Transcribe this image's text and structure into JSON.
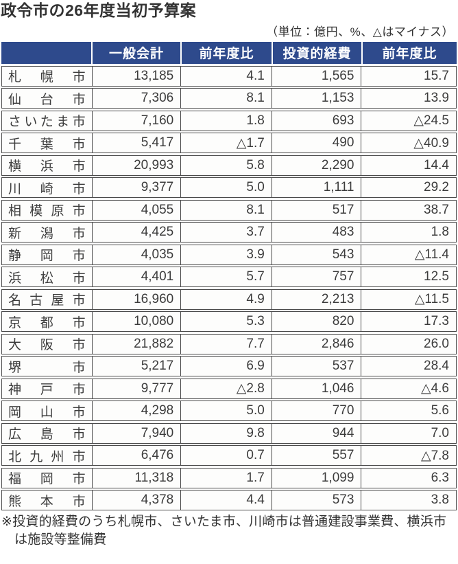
{
  "title": "政令市の26年度当初予算案",
  "units_note": "（単位：億円、%、△はマイナス）",
  "footnote": "※投資的経費のうち札幌市、さいたま市、川崎市は普通建設事業費、横浜市は施設等整備費",
  "colors": {
    "header_bg": "#2e4a8c",
    "header_text": "#ffffff",
    "border": "#4a4a4a",
    "text": "#3c3c3c"
  },
  "chart_data": {
    "type": "table",
    "title": "政令市の26年度当初予算案",
    "units": "億円、%、△はマイナス",
    "columns": [
      "",
      "一般会計",
      "前年度比",
      "投資的経費",
      "前年度比"
    ],
    "rows": [
      {
        "city": "札幌市",
        "values": [
          "13,185",
          "4.1",
          "1,565",
          "15.7"
        ]
      },
      {
        "city": "仙台市",
        "values": [
          "7,306",
          "8.1",
          "1,153",
          "13.9"
        ]
      },
      {
        "city": "さいたま市",
        "values": [
          "7,160",
          "1.8",
          "693",
          "△24.5"
        ]
      },
      {
        "city": "千葉市",
        "values": [
          "5,417",
          "△1.7",
          "490",
          "△40.9"
        ]
      },
      {
        "city": "横浜市",
        "values": [
          "20,993",
          "5.8",
          "2,290",
          "14.4"
        ]
      },
      {
        "city": "川崎市",
        "values": [
          "9,377",
          "5.0",
          "1,111",
          "29.2"
        ]
      },
      {
        "city": "相模原市",
        "values": [
          "4,055",
          "8.1",
          "517",
          "38.7"
        ]
      },
      {
        "city": "新潟市",
        "values": [
          "4,425",
          "3.7",
          "483",
          "1.8"
        ]
      },
      {
        "city": "静岡市",
        "values": [
          "4,035",
          "3.9",
          "543",
          "△11.4"
        ]
      },
      {
        "city": "浜松市",
        "values": [
          "4,401",
          "5.7",
          "757",
          "12.5"
        ]
      },
      {
        "city": "名古屋市",
        "values": [
          "16,960",
          "4.9",
          "2,213",
          "△11.5"
        ]
      },
      {
        "city": "京都市",
        "values": [
          "10,080",
          "5.3",
          "820",
          "17.3"
        ]
      },
      {
        "city": "大阪市",
        "values": [
          "21,882",
          "7.7",
          "2,846",
          "26.0"
        ]
      },
      {
        "city": "堺市",
        "values": [
          "5,217",
          "6.9",
          "537",
          "28.4"
        ]
      },
      {
        "city": "神戸市",
        "values": [
          "9,777",
          "△2.8",
          "1,046",
          "△4.6"
        ]
      },
      {
        "city": "岡山市",
        "values": [
          "4,298",
          "5.0",
          "770",
          "5.6"
        ]
      },
      {
        "city": "広島市",
        "values": [
          "7,940",
          "9.8",
          "944",
          "7.0"
        ]
      },
      {
        "city": "北九州市",
        "values": [
          "6,476",
          "0.7",
          "557",
          "△7.8"
        ]
      },
      {
        "city": "福岡市",
        "values": [
          "11,318",
          "1.7",
          "1,099",
          "6.3"
        ]
      },
      {
        "city": "熊本市",
        "values": [
          "4,378",
          "4.4",
          "573",
          "3.8"
        ]
      }
    ],
    "footnote": "※投資的経費のうち札幌市、さいたま市、川崎市は普通建設事業費、横浜市は施設等整備費"
  }
}
